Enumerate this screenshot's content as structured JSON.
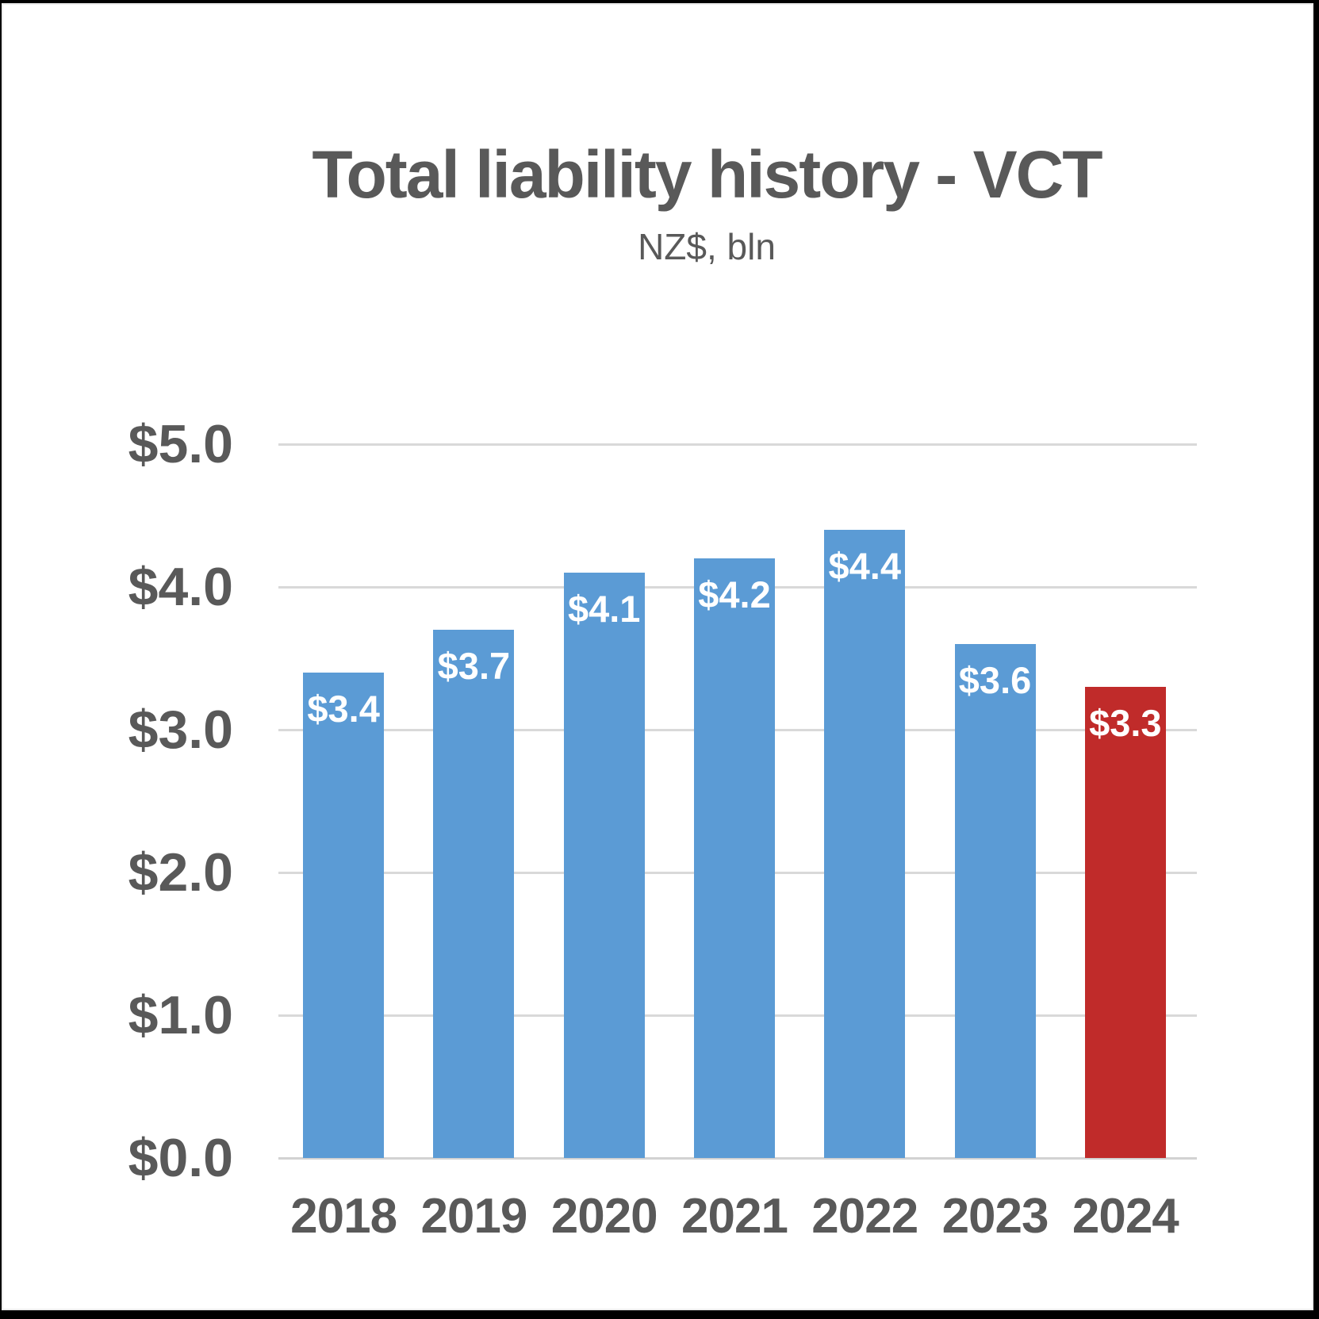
{
  "chart_data": {
    "type": "bar",
    "title": "Total liability history - VCT",
    "subtitle": "NZ$, bln",
    "categories": [
      "2018",
      "2019",
      "2020",
      "2021",
      "2022",
      "2023",
      "2024"
    ],
    "values": [
      3.4,
      3.7,
      4.1,
      4.2,
      4.4,
      3.6,
      3.3
    ],
    "bar_labels": [
      "$3.4",
      "$3.7",
      "$4.1",
      "$4.2",
      "$4.4",
      "$3.6",
      "$3.3"
    ],
    "highlight_index": 6,
    "ylim": [
      0,
      5
    ],
    "y_ticks": [
      {
        "value": 5,
        "label": "$5.0"
      },
      {
        "value": 4,
        "label": "$4.0"
      },
      {
        "value": 3,
        "label": "$3.0"
      },
      {
        "value": 2,
        "label": "$2.0"
      },
      {
        "value": 1,
        "label": "$1.0"
      },
      {
        "value": 0,
        "label": "$0.0"
      }
    ],
    "grid": "horizontal",
    "legend": "none",
    "xlabel": "",
    "ylabel": "",
    "colors": {
      "bar_default": "#5B9BD5",
      "bar_highlight": "#C02B2A",
      "bar_label_text": "#FFFFFF",
      "title_text": "#595959",
      "axis_text": "#595959",
      "gridline": "#D9D9D9",
      "frame": "#000000"
    }
  }
}
